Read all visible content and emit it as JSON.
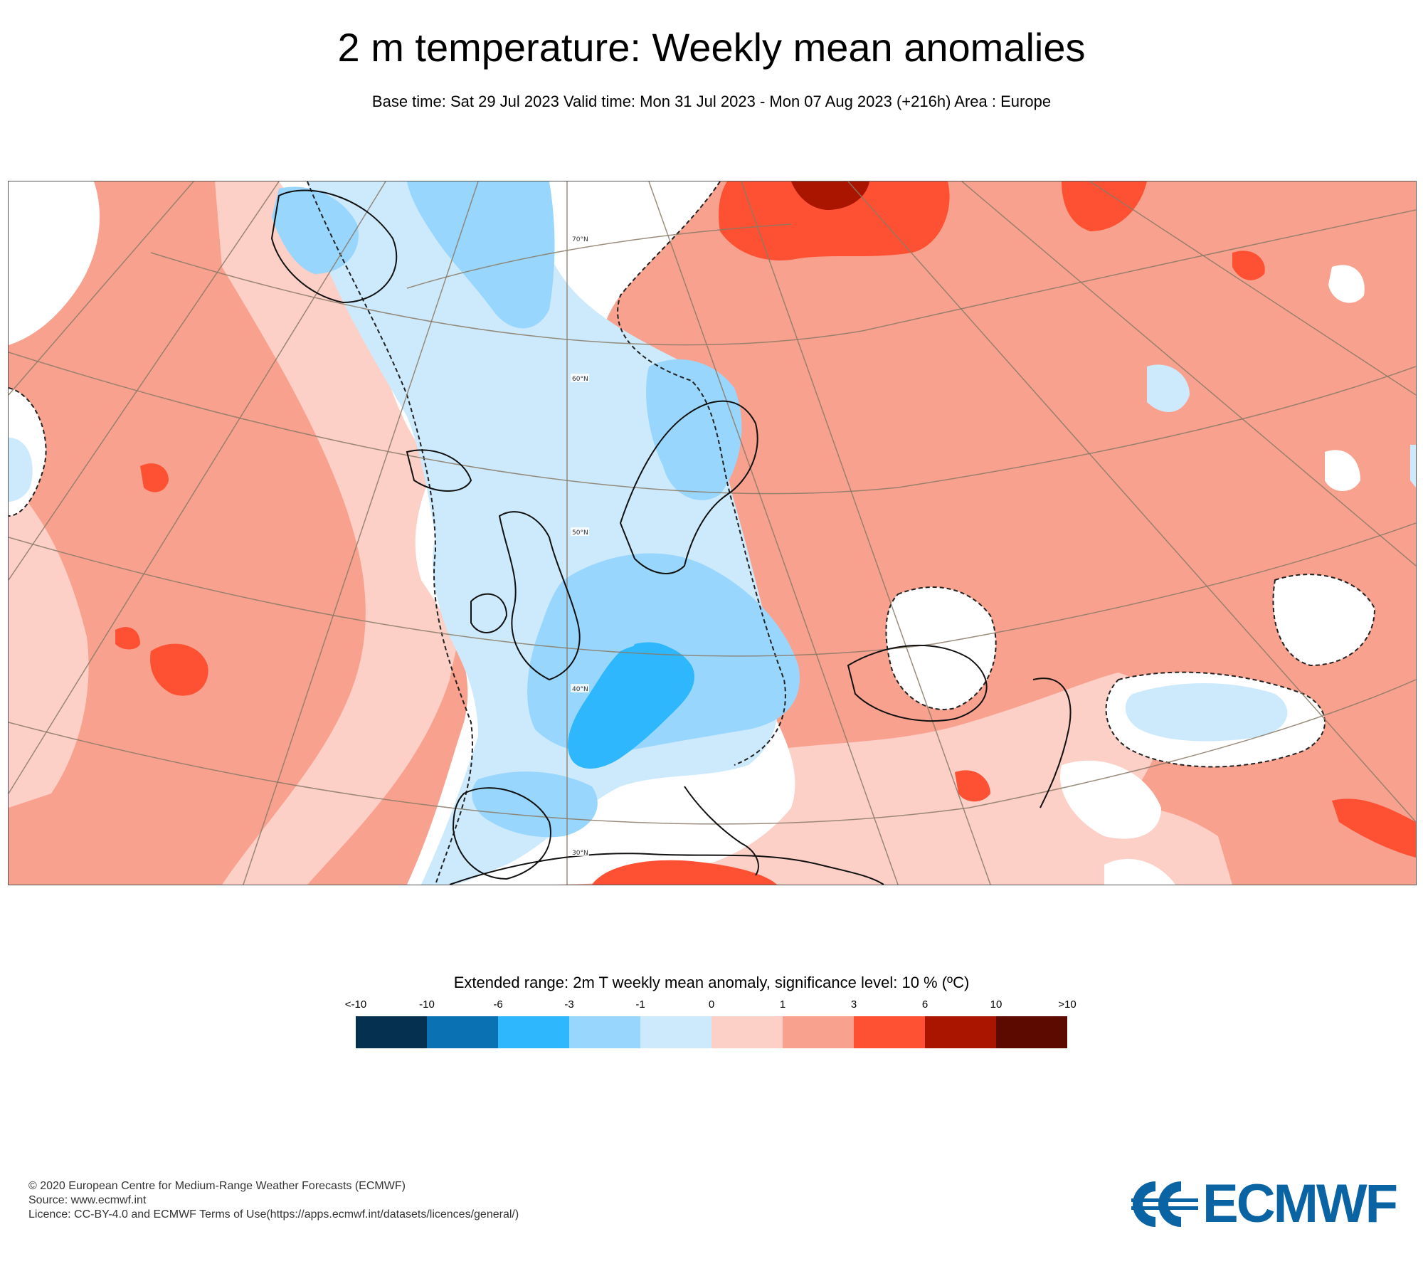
{
  "title": "2 m temperature: Weekly mean anomalies",
  "subtitle": "Base time: Sat 29 Jul 2023 Valid time: Mon 31 Jul 2023 - Mon 07 Aug 2023 (+216h) Area : Europe",
  "map": {
    "area": "Europe",
    "latitude_labels": [
      "70°N",
      "60°N",
      "50°N",
      "40°N",
      "30°N"
    ],
    "land_color": "#f9a18f",
    "colors": {
      "cold_1": "#cdeafc",
      "cold_2": "#99d6fd",
      "cold_3": "#2eb7fd",
      "warm_1": "#fccfc7",
      "warm_2": "#f9a18f",
      "warm_3": "#fe5133",
      "warm_4": "#aa1500",
      "neutral": "#ffffff"
    }
  },
  "legend": {
    "title": "Extended range: 2m T weekly mean anomaly, significance level: 10 % (ºC)",
    "ticks": [
      "<-10",
      "-10",
      "-6",
      "-3",
      "-1",
      "0",
      "1",
      "3",
      "6",
      "10",
      ">10"
    ],
    "colors": [
      "#06304f",
      "#0a72b2",
      "#2eb7fd",
      "#99d6fd",
      "#cdeafc",
      "#fccfc7",
      "#f9a18f",
      "#fe5133",
      "#aa1500",
      "#5c0900"
    ]
  },
  "footer": {
    "copyright": "© 2020 European Centre for Medium-Range Weather Forecasts (ECMWF)",
    "source": "Source: www.ecmwf.int",
    "licence": "Licence: CC-BY-4.0 and ECMWF Terms of Use(https://apps.ecmwf.int/datasets/licences/general/)"
  },
  "logo": {
    "text": "ECMWF",
    "color": "#0a64a4"
  }
}
